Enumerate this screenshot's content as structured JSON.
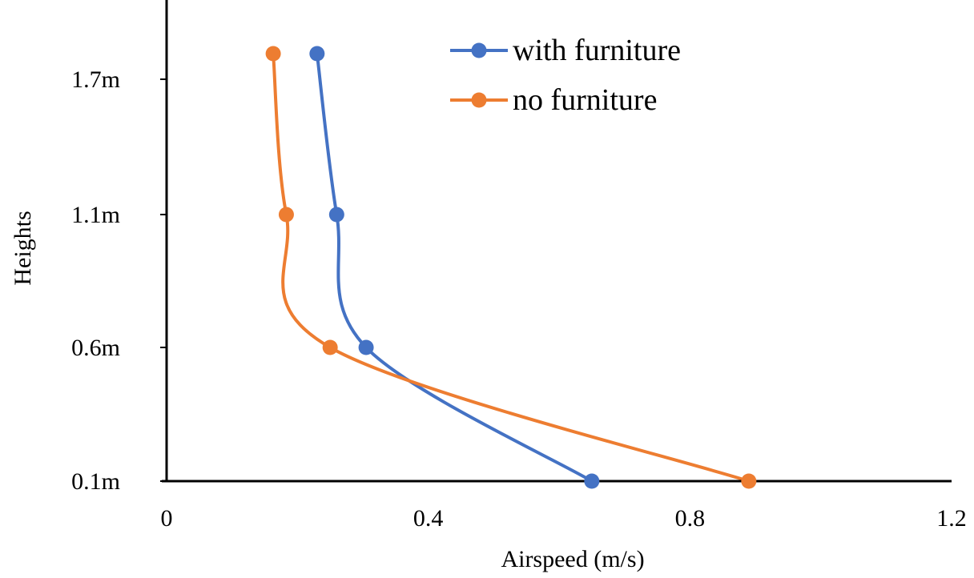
{
  "chart_data": {
    "type": "line",
    "xlabel": "Airspeed (m/s)",
    "ylabel": "Heights",
    "xlim": [
      0,
      1.2
    ],
    "x_ticks": [
      {
        "value": 0,
        "label": "0"
      },
      {
        "value": 0.4,
        "label": "0.4"
      },
      {
        "value": 0.8,
        "label": "0.8"
      },
      {
        "value": 1.2,
        "label": "1.2"
      }
    ],
    "y_ticks": [
      {
        "value": 0.1,
        "label": "0.1m"
      },
      {
        "value": 0.6,
        "label": "0.6m"
      },
      {
        "value": 1.1,
        "label": "1.1m"
      },
      {
        "value": 1.7,
        "label": "1.7m"
      }
    ],
    "grid": false,
    "legend_position": "top-center",
    "smooth": true,
    "series": [
      {
        "name": "with furniture",
        "color": "#4472C4",
        "points": [
          {
            "x": 0.65,
            "y": 0.1
          },
          {
            "x": 0.305,
            "y": 0.6
          },
          {
            "x": 0.26,
            "y": 1.1
          },
          {
            "x": 0.23,
            "y": 1.7
          }
        ]
      },
      {
        "name": "no furniture",
        "color": "#ED7D31",
        "points": [
          {
            "x": 0.89,
            "y": 0.1
          },
          {
            "x": 0.25,
            "y": 0.6
          },
          {
            "x": 0.183,
            "y": 1.1
          },
          {
            "x": 0.163,
            "y": 1.7
          }
        ]
      }
    ]
  }
}
